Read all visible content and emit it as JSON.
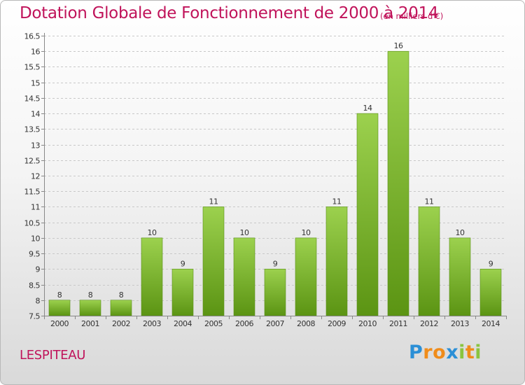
{
  "chart_data": {
    "type": "bar",
    "title": "Dotation Globale de Fonctionnement de 2000 à 2014",
    "subtitle": "(en milliers d'€)",
    "categories": [
      "2000",
      "2001",
      "2002",
      "2003",
      "2004",
      "2005",
      "2006",
      "2007",
      "2008",
      "2009",
      "2010",
      "2011",
      "2012",
      "2013",
      "2014"
    ],
    "values": [
      8,
      8,
      8,
      10,
      9,
      11,
      10,
      9,
      10,
      11,
      14,
      16,
      11,
      10,
      9
    ],
    "ylim": [
      7.5,
      16.5
    ],
    "yticks": [
      "7.5",
      "8",
      "8.5",
      "9",
      "9.5",
      "10",
      "10.5",
      "11",
      "11.5",
      "12",
      "12.5",
      "13",
      "13.5",
      "14",
      "14.5",
      "15",
      "15.5",
      "16",
      "16.5"
    ],
    "grid": true,
    "xlabel": "",
    "ylabel": ""
  },
  "place_name": "LESPITEAU",
  "logo": {
    "text": "Proxiti",
    "letters": [
      {
        "ch": "P",
        "color": "#2b8fd6"
      },
      {
        "ch": "r",
        "color": "#f08c1a"
      },
      {
        "ch": "o",
        "color": "#f08c1a"
      },
      {
        "ch": "x",
        "color": "#2b8fd6"
      },
      {
        "ch": "i",
        "color": "#8ac43f"
      },
      {
        "ch": "t",
        "color": "#f08c1a"
      },
      {
        "ch": "i",
        "color": "#8ac43f"
      }
    ]
  },
  "colors": {
    "title": "#c0135a",
    "bar_top": "#9cd14e",
    "bar_bottom": "#5b9413",
    "grid": "#c8c8c8",
    "axis": "#888888"
  }
}
